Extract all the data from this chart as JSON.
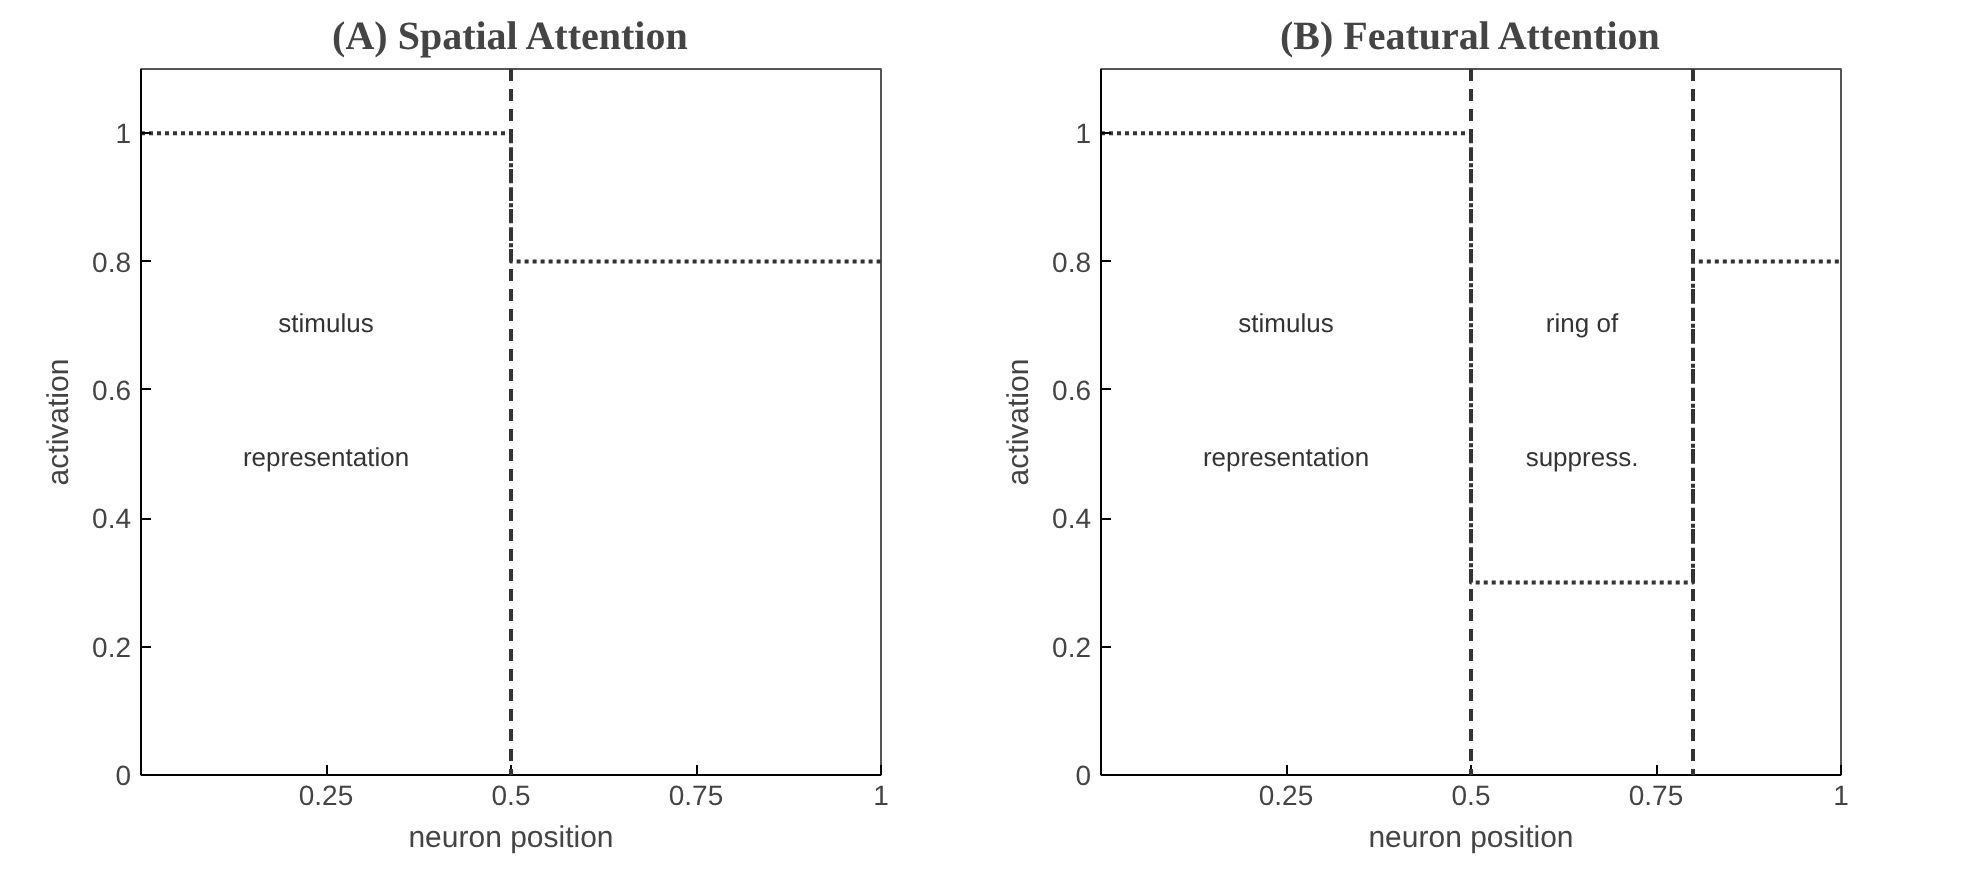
{
  "chart_data": [
    {
      "type": "step",
      "title": "(A) Spatial Attention",
      "xlabel": "neuron position",
      "ylabel": "activation",
      "x": [
        0,
        0.5,
        1
      ],
      "values": [
        1,
        0.8,
        0.8
      ],
      "color": "#333333",
      "line_style": "dotted",
      "xlim": [
        0,
        1
      ],
      "ylim": [
        0,
        1.1
      ],
      "xticks": [
        0.25,
        0.5,
        0.75,
        1
      ],
      "yticks": [
        0,
        0.2,
        0.4,
        0.6,
        0.8,
        1
      ],
      "grid": false,
      "ref_lines": [
        {
          "axis": "x",
          "value": 0.5,
          "color": "#333333",
          "line_style": "dashed"
        }
      ],
      "annotations": [
        "stimulus",
        "representation"
      ]
    },
    {
      "type": "step",
      "title": "(B) Featural Attention",
      "xlabel": "neuron position",
      "ylabel": "activation",
      "x": [
        0,
        0.5,
        0.8,
        1
      ],
      "values": [
        1,
        0.3,
        0.8,
        0.8
      ],
      "color": "#333333",
      "line_style": "dotted",
      "xlim": [
        0,
        1
      ],
      "ylim": [
        0,
        1.1
      ],
      "xticks": [
        0.25,
        0.5,
        0.75,
        1
      ],
      "yticks": [
        0,
        0.2,
        0.4,
        0.6,
        0.8,
        1
      ],
      "grid": false,
      "ref_lines": [
        {
          "axis": "x",
          "value": 0.5,
          "color": "#333333",
          "line_style": "dashed"
        },
        {
          "axis": "x",
          "value": 0.8,
          "color": "#333333",
          "line_style": "dashed"
        }
      ],
      "annotations": [
        "stimulus",
        "representation",
        "ring of",
        "suppress."
      ]
    }
  ]
}
